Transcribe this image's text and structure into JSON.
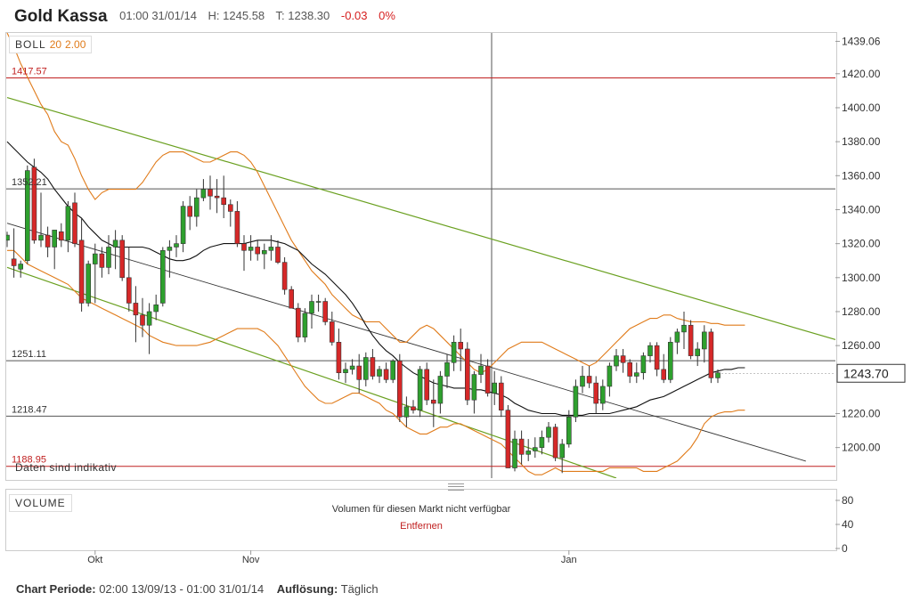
{
  "header": {
    "title": "Gold Kassa",
    "time": "01:00 31/01/14",
    "high": "H: 1245.58",
    "low": "T: 1238.30",
    "change": "-0.03",
    "change_pct": "0%"
  },
  "indicator": {
    "name": "BOLL",
    "period": "20",
    "dev": "2.00"
  },
  "last_price": "1243.70",
  "indicative_note": "Daten sind indikativ",
  "volume": {
    "label": "VOLUME",
    "message": "Volumen für diesen Markt nicht verfügbar",
    "remove": "Entfernen",
    "ticks": [
      "80",
      "40",
      "0"
    ]
  },
  "footer": {
    "period_label": "Chart Periode:",
    "period_value": "02:00 13/09/13 - 01:00 31/01/14",
    "res_label": "Auflösung:",
    "res_value": "Täglich"
  },
  "colors": {
    "up": "#2ea02e",
    "down": "#d62828",
    "boll": "#e07b1a",
    "channel": "#6aa020",
    "hline": "#c02020"
  },
  "chart_data": {
    "type": "candlestick",
    "x_labels": [
      {
        "label": "Okt",
        "index": 13
      },
      {
        "label": "Nov",
        "index": 36
      },
      {
        "label": "Jan",
        "index": 83
      }
    ],
    "y_ticks": [
      "1439.06",
      "1420.00",
      "1400.00",
      "1380.00",
      "1360.00",
      "1340.00",
      "1320.00",
      "1300.00",
      "1280.00",
      "1260.00",
      "1220.00",
      "1200.00"
    ],
    "ylim": [
      1182,
      1444
    ],
    "horizontal_lines": [
      {
        "value": 1417.57,
        "label": "1417.57",
        "color": "red"
      },
      {
        "value": 1352.21,
        "label": "1352.21",
        "color": "dark"
      },
      {
        "value": 1251.11,
        "label": "1251.11",
        "color": "dark"
      },
      {
        "value": 1218.47,
        "label": "1218.47",
        "color": "dark"
      },
      {
        "value": 1188.95,
        "label": "1188.95",
        "color": "red"
      }
    ],
    "candles": [
      [
        1322,
        1327,
        1318,
        1325
      ],
      [
        1311,
        1329,
        1300,
        1307
      ],
      [
        1305,
        1310,
        1300,
        1308
      ],
      [
        1310,
        1366,
        1308,
        1363
      ],
      [
        1365,
        1370,
        1320,
        1322
      ],
      [
        1322,
        1350,
        1318,
        1325
      ],
      [
        1325,
        1330,
        1312,
        1318
      ],
      [
        1318,
        1328,
        1305,
        1328
      ],
      [
        1327,
        1332,
        1318,
        1322
      ],
      [
        1322,
        1345,
        1315,
        1342
      ],
      [
        1344,
        1350,
        1318,
        1320
      ],
      [
        1322,
        1335,
        1280,
        1285
      ],
      [
        1285,
        1310,
        1283,
        1308
      ],
      [
        1308,
        1320,
        1285,
        1314
      ],
      [
        1314,
        1318,
        1300,
        1306
      ],
      [
        1306,
        1325,
        1302,
        1318
      ],
      [
        1318,
        1328,
        1305,
        1322
      ],
      [
        1322,
        1325,
        1298,
        1300
      ],
      [
        1300,
        1318,
        1280,
        1285
      ],
      [
        1285,
        1295,
        1262,
        1278
      ],
      [
        1278,
        1288,
        1265,
        1272
      ],
      [
        1272,
        1285,
        1255,
        1280
      ],
      [
        1280,
        1290,
        1275,
        1284
      ],
      [
        1285,
        1318,
        1283,
        1316
      ],
      [
        1316,
        1322,
        1300,
        1318
      ],
      [
        1318,
        1325,
        1312,
        1320
      ],
      [
        1320,
        1345,
        1315,
        1342
      ],
      [
        1342,
        1348,
        1328,
        1336
      ],
      [
        1336,
        1352,
        1330,
        1347
      ],
      [
        1347,
        1358,
        1345,
        1352
      ],
      [
        1352,
        1360,
        1340,
        1348
      ],
      [
        1348,
        1358,
        1338,
        1347
      ],
      [
        1347,
        1360,
        1335,
        1343
      ],
      [
        1343,
        1346,
        1330,
        1339
      ],
      [
        1339,
        1345,
        1318,
        1320
      ],
      [
        1320,
        1325,
        1304,
        1316
      ],
      [
        1316,
        1325,
        1310,
        1318
      ],
      [
        1318,
        1322,
        1310,
        1314
      ],
      [
        1314,
        1320,
        1305,
        1316
      ],
      [
        1316,
        1325,
        1310,
        1318
      ],
      [
        1318,
        1322,
        1308,
        1309
      ],
      [
        1309,
        1312,
        1290,
        1293
      ],
      [
        1293,
        1295,
        1282,
        1282
      ],
      [
        1282,
        1285,
        1262,
        1265
      ],
      [
        1265,
        1282,
        1262,
        1279
      ],
      [
        1279,
        1290,
        1270,
        1286
      ],
      [
        1286,
        1290,
        1280,
        1286
      ],
      [
        1286,
        1288,
        1272,
        1274
      ],
      [
        1274,
        1280,
        1260,
        1262
      ],
      [
        1262,
        1270,
        1240,
        1244
      ],
      [
        1244,
        1250,
        1238,
        1246
      ],
      [
        1246,
        1252,
        1243,
        1248
      ],
      [
        1248,
        1255,
        1232,
        1240
      ],
      [
        1240,
        1256,
        1236,
        1253
      ],
      [
        1253,
        1258,
        1240,
        1242
      ],
      [
        1242,
        1248,
        1238,
        1246
      ],
      [
        1246,
        1250,
        1238,
        1240
      ],
      [
        1240,
        1252,
        1238,
        1251
      ],
      [
        1251,
        1255,
        1215,
        1218
      ],
      [
        1218,
        1230,
        1212,
        1224
      ],
      [
        1224,
        1228,
        1220,
        1222
      ],
      [
        1222,
        1248,
        1218,
        1246
      ],
      [
        1246,
        1250,
        1225,
        1228
      ],
      [
        1228,
        1240,
        1212,
        1226
      ],
      [
        1226,
        1245,
        1220,
        1242
      ],
      [
        1242,
        1255,
        1235,
        1250
      ],
      [
        1250,
        1266,
        1245,
        1262
      ],
      [
        1262,
        1270,
        1245,
        1258
      ],
      [
        1258,
        1262,
        1225,
        1228
      ],
      [
        1228,
        1245,
        1220,
        1243
      ],
      [
        1243,
        1255,
        1238,
        1248
      ],
      [
        1248,
        1252,
        1230,
        1232
      ],
      [
        1232,
        1245,
        1225,
        1238
      ],
      [
        1238,
        1242,
        1218,
        1222
      ],
      [
        1222,
        1225,
        1188,
        1188
      ],
      [
        1188,
        1210,
        1186,
        1205
      ],
      [
        1205,
        1210,
        1190,
        1196
      ],
      [
        1196,
        1205,
        1192,
        1198
      ],
      [
        1198,
        1206,
        1194,
        1200
      ],
      [
        1200,
        1210,
        1196,
        1206
      ],
      [
        1206,
        1215,
        1203,
        1212
      ],
      [
        1212,
        1214,
        1192,
        1194
      ],
      [
        1194,
        1205,
        1185,
        1202
      ],
      [
        1202,
        1222,
        1200,
        1218
      ],
      [
        1218,
        1240,
        1215,
        1236
      ],
      [
        1236,
        1248,
        1232,
        1242
      ],
      [
        1242,
        1248,
        1235,
        1238
      ],
      [
        1238,
        1242,
        1220,
        1226
      ],
      [
        1226,
        1240,
        1222,
        1236
      ],
      [
        1236,
        1250,
        1230,
        1248
      ],
      [
        1248,
        1258,
        1245,
        1254
      ],
      [
        1254,
        1258,
        1244,
        1250
      ],
      [
        1250,
        1252,
        1238,
        1242
      ],
      [
        1242,
        1250,
        1238,
        1244
      ],
      [
        1244,
        1256,
        1240,
        1254
      ],
      [
        1254,
        1262,
        1250,
        1260
      ],
      [
        1260,
        1262,
        1242,
        1246
      ],
      [
        1246,
        1255,
        1238,
        1240
      ],
      [
        1240,
        1265,
        1238,
        1262
      ],
      [
        1262,
        1270,
        1255,
        1268
      ],
      [
        1268,
        1280,
        1258,
        1272
      ],
      [
        1272,
        1275,
        1252,
        1254
      ],
      [
        1254,
        1262,
        1248,
        1258
      ],
      [
        1258,
        1272,
        1250,
        1268
      ],
      [
        1268,
        1270,
        1238,
        1241
      ],
      [
        1241,
        1246,
        1238,
        1244
      ]
    ],
    "channel_upper": [
      [
        0,
        1406
      ],
      [
        134,
        1250
      ]
    ],
    "channel_lower": [
      [
        0,
        1306
      ],
      [
        90,
        1182
      ]
    ],
    "trend_line": [
      [
        0,
        1332
      ],
      [
        118,
        1192
      ]
    ],
    "sma": [
      1380,
      1376,
      1372,
      1368,
      1365,
      1362,
      1358,
      1352,
      1347,
      1342,
      1338,
      1335,
      1330,
      1326,
      1322,
      1320,
      1318,
      1318,
      1318,
      1318,
      1318,
      1317,
      1315,
      1313,
      1311,
      1310,
      1310,
      1311,
      1313,
      1316,
      1318,
      1319,
      1320,
      1320,
      1320,
      1320,
      1321,
      1322,
      1322,
      1322,
      1321,
      1320,
      1318,
      1316,
      1312,
      1308,
      1305,
      1302,
      1298,
      1294,
      1290,
      1285,
      1279,
      1272,
      1266,
      1261,
      1257,
      1254,
      1250,
      1247,
      1244,
      1242,
      1240,
      1238,
      1237,
      1236,
      1235,
      1235,
      1235,
      1234,
      1234,
      1233,
      1232,
      1231,
      1229,
      1226,
      1224,
      1222,
      1221,
      1220,
      1220,
      1220,
      1219,
      1219,
      1219,
      1219,
      1220,
      1220,
      1220,
      1220,
      1221,
      1222,
      1223,
      1224,
      1226,
      1228,
      1229,
      1230,
      1232,
      1234,
      1236,
      1238,
      1240,
      1242,
      1244,
      1245,
      1246,
      1246,
      1247,
      1247
    ],
    "boll_upper": [
      1444,
      1436,
      1426,
      1418,
      1410,
      1402,
      1396,
      1386,
      1380,
      1378,
      1370,
      1360,
      1352,
      1346,
      1350,
      1352,
      1352,
      1352,
      1352,
      1352,
      1356,
      1362,
      1368,
      1372,
      1374,
      1374,
      1374,
      1372,
      1370,
      1368,
      1368,
      1370,
      1372,
      1374,
      1374,
      1372,
      1368,
      1362,
      1354,
      1346,
      1338,
      1330,
      1322,
      1316,
      1310,
      1304,
      1300,
      1296,
      1290,
      1286,
      1282,
      1278,
      1276,
      1274,
      1274,
      1274,
      1270,
      1266,
      1262,
      1262,
      1266,
      1270,
      1272,
      1270,
      1266,
      1262,
      1258,
      1254,
      1250,
      1246,
      1244,
      1246,
      1250,
      1254,
      1258,
      1260,
      1262,
      1262,
      1262,
      1262,
      1260,
      1258,
      1256,
      1254,
      1252,
      1250,
      1248,
      1250,
      1254,
      1258,
      1262,
      1266,
      1270,
      1272,
      1274,
      1276,
      1276,
      1278,
      1278,
      1276,
      1275,
      1274,
      1274,
      1274,
      1273,
      1273,
      1272,
      1272,
      1272,
      1272
    ],
    "boll_lower": [
      1316,
      1316,
      1312,
      1308,
      1306,
      1304,
      1302,
      1300,
      1298,
      1296,
      1292,
      1288,
      1286,
      1284,
      1282,
      1280,
      1278,
      1276,
      1274,
      1272,
      1270,
      1266,
      1264,
      1262,
      1261,
      1260,
      1260,
      1260,
      1260,
      1261,
      1262,
      1264,
      1266,
      1268,
      1270,
      1270,
      1270,
      1270,
      1268,
      1264,
      1260,
      1254,
      1248,
      1242,
      1236,
      1232,
      1228,
      1226,
      1226,
      1228,
      1230,
      1232,
      1232,
      1230,
      1228,
      1226,
      1222,
      1220,
      1216,
      1212,
      1210,
      1208,
      1208,
      1210,
      1212,
      1212,
      1214,
      1214,
      1212,
      1210,
      1208,
      1206,
      1204,
      1202,
      1198,
      1194,
      1190,
      1186,
      1184,
      1184,
      1186,
      1188,
      1186,
      1186,
      1186,
      1186,
      1186,
      1186,
      1186,
      1188,
      1188,
      1188,
      1188,
      1188,
      1186,
      1186,
      1186,
      1188,
      1190,
      1192,
      1196,
      1200,
      1206,
      1214,
      1218,
      1220,
      1221,
      1221,
      1222,
      1222
    ]
  }
}
